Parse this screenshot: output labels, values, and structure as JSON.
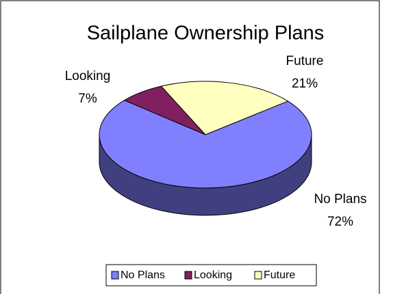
{
  "chart_data": {
    "type": "pie",
    "title": "Sailplane Ownership Plans",
    "categories": [
      "No Plans",
      "Looking",
      "Future"
    ],
    "values": [
      72,
      7,
      21
    ],
    "value_labels": [
      "72%",
      "7%",
      "21%"
    ],
    "colors": [
      "#8080ff",
      "#802060",
      "#ffffc0"
    ],
    "legend": "bottom"
  }
}
